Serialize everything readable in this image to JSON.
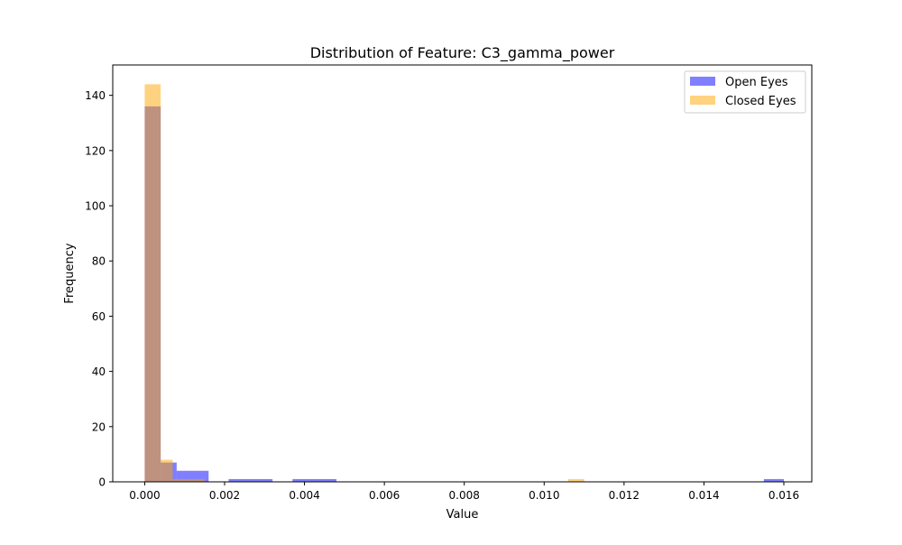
{
  "chart_data": {
    "type": "bar",
    "title": "Distribution of Feature: C3_gamma_power",
    "xlabel": "Value",
    "ylabel": "Frequency",
    "xlim": [
      -0.0008,
      0.0167
    ],
    "ylim": [
      0,
      151
    ],
    "x_ticks": [
      "0.000",
      "0.002",
      "0.004",
      "0.006",
      "0.008",
      "0.010",
      "0.012",
      "0.014",
      "0.016"
    ],
    "x_tick_values": [
      0,
      0.002,
      0.004,
      0.006,
      0.008,
      0.01,
      0.012,
      0.014,
      0.016
    ],
    "y_ticks": [
      "0",
      "20",
      "40",
      "60",
      "80",
      "100",
      "120",
      "140"
    ],
    "y_tick_values": [
      0,
      20,
      40,
      60,
      80,
      100,
      120,
      140
    ],
    "grid": false,
    "legend_position": "top-right",
    "series": [
      {
        "name": "Open Eyes",
        "color": "#0000ff",
        "opacity": 0.5,
        "bins": [
          {
            "x0": 0.0,
            "x1": 0.0004,
            "count": 136
          },
          {
            "x0": 0.0004,
            "x1": 0.0008,
            "count": 7
          },
          {
            "x0": 0.0008,
            "x1": 0.0016,
            "count": 4
          },
          {
            "x0": 0.0021,
            "x1": 0.0032,
            "count": 1
          },
          {
            "x0": 0.0037,
            "x1": 0.0048,
            "count": 1
          },
          {
            "x0": 0.0155,
            "x1": 0.016,
            "count": 1
          }
        ]
      },
      {
        "name": "Closed Eyes",
        "color": "#ffa500",
        "opacity": 0.5,
        "bins": [
          {
            "x0": 0.0,
            "x1": 0.0004,
            "count": 144
          },
          {
            "x0": 0.0004,
            "x1": 0.0007,
            "count": 8
          },
          {
            "x0": 0.0007,
            "x1": 0.0015,
            "count": 1
          },
          {
            "x0": 0.0106,
            "x1": 0.011,
            "count": 1
          }
        ]
      }
    ]
  }
}
